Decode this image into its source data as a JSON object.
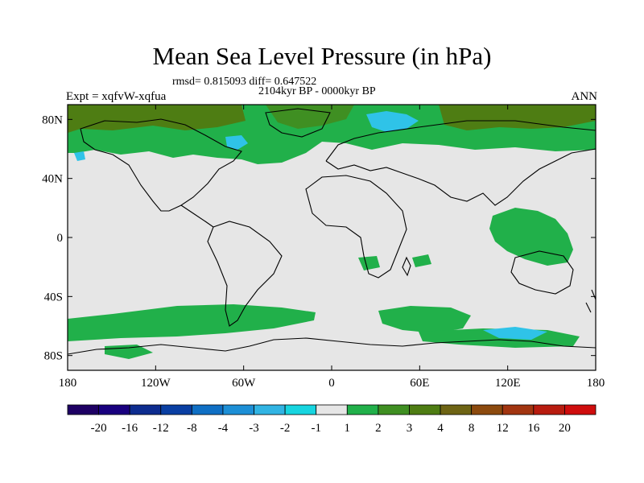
{
  "title": "Mean Sea Level Pressure (in hPa)",
  "stats": "rmsd= 0.815093 diff= 0.647522",
  "period": "2104kyr BP - 0000kyr BP",
  "experiment": "Expt = xqfvW-xqfua",
  "season": "ANN",
  "axes": {
    "lon_ticks": [
      "180",
      "120W",
      "60W",
      "0",
      "60E",
      "120E",
      "180"
    ],
    "lat_ticks": [
      "80N",
      "40N",
      "0",
      "40S",
      "80S"
    ]
  },
  "colorbar": {
    "labels": [
      "-20",
      "-16",
      "-12",
      "-8",
      "-4",
      "-3",
      "-2",
      "-1",
      "1",
      "2",
      "3",
      "4",
      "8",
      "12",
      "16",
      "20"
    ],
    "colors": [
      "#1e0064",
      "#19007f",
      "#0d2c8f",
      "#0a3fa3",
      "#0f6fc4",
      "#1d8fd6",
      "#31b4e3",
      "#17d5e0",
      "#e6e6e6",
      "#21b04a",
      "#3f8f22",
      "#4e7d13",
      "#6e6414",
      "#8c4a0e",
      "#a23510",
      "#b81c0f",
      "#cf0d0d"
    ]
  },
  "colors": {
    "background_field": "#e6e6e6",
    "positive_1_2": "#21b04a",
    "positive_2_3": "#3f8f22",
    "positive_3_4": "#4e7d13",
    "negative_small": "#2fc3e8",
    "coastline": "#000000"
  }
}
